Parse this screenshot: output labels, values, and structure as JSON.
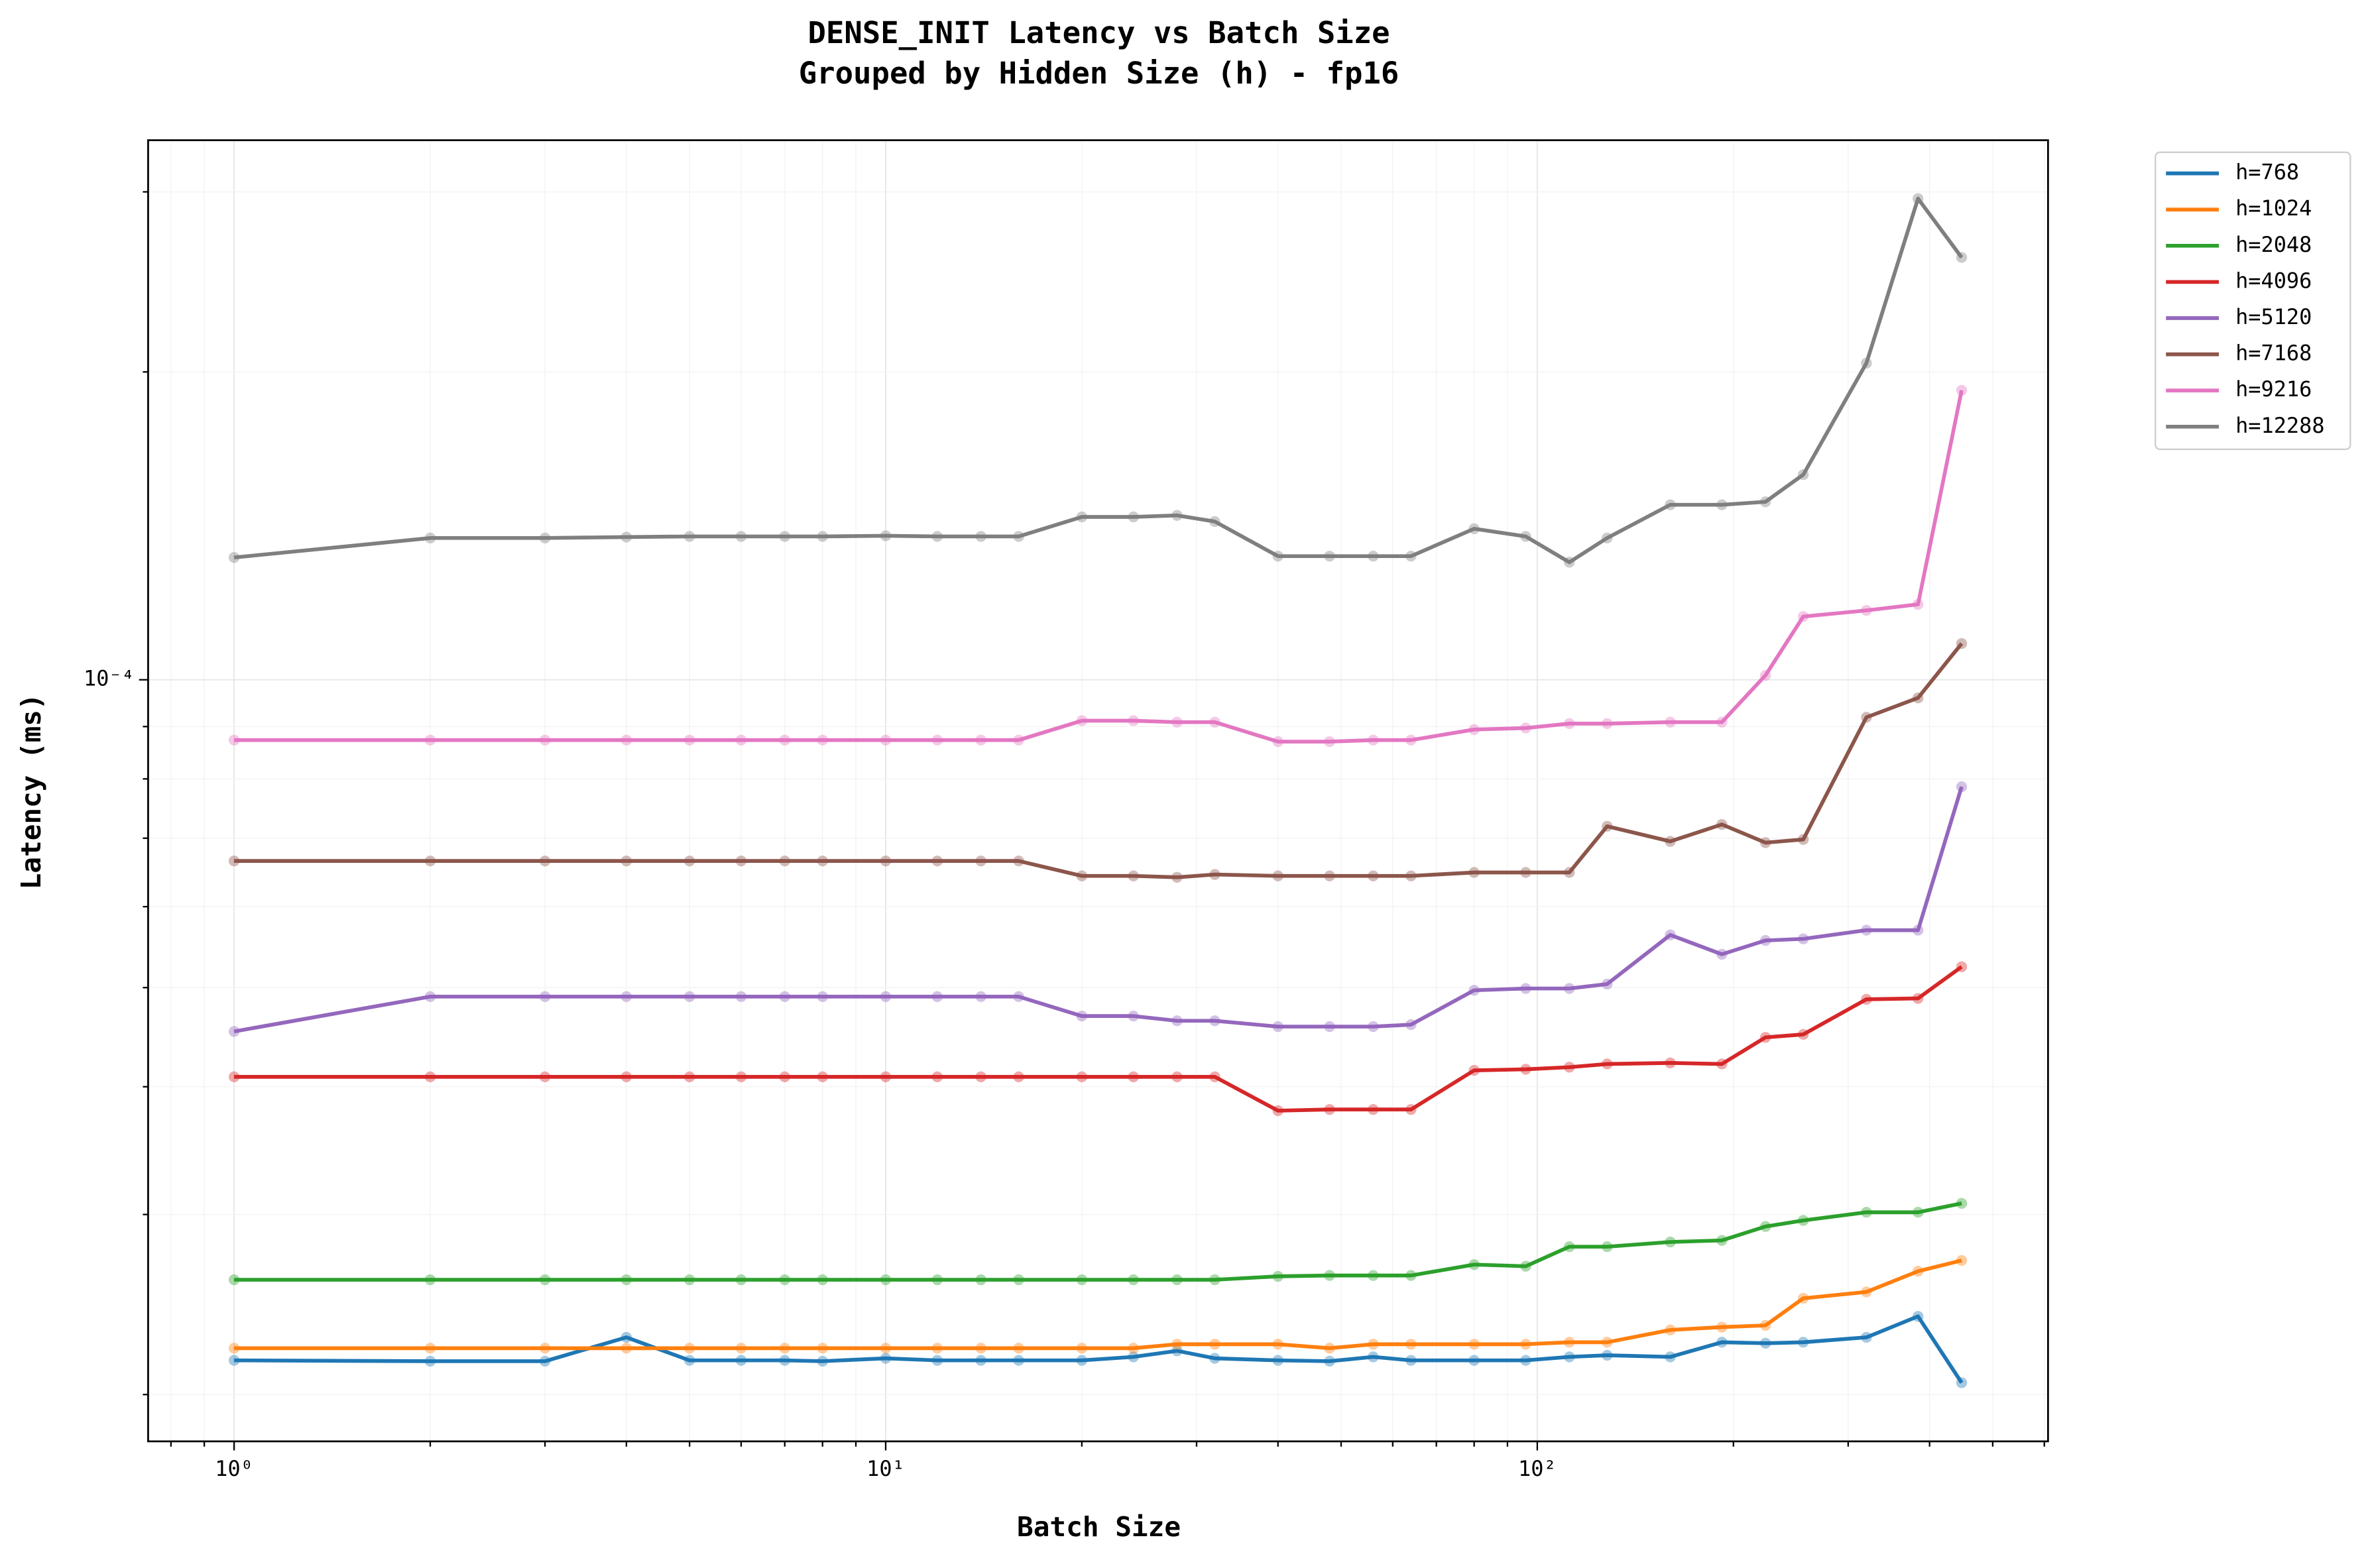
{
  "chart_data": {
    "type": "line",
    "title": "DENSE_INIT Latency vs Batch Size",
    "subtitle": "Grouped by Hidden Size (h) - fp16",
    "x_label": "Batch Size",
    "y_label": "Latency (ms)",
    "x_scale": "log",
    "y_scale": "log",
    "grid": true,
    "legend_position": "outside-upper-right",
    "xlim": [
      0.738,
      608
    ],
    "ylim": [
      1.8e-05,
      0.000337
    ],
    "xticks": [
      {
        "value": 1,
        "label": "10⁰"
      },
      {
        "value": 10,
        "label": "10¹"
      },
      {
        "value": 100,
        "label": "10²"
      }
    ],
    "xticks_minor": [
      0.8,
      0.9,
      2,
      3,
      4,
      5,
      6,
      7,
      8,
      9,
      20,
      30,
      40,
      50,
      60,
      70,
      80,
      90,
      200,
      300,
      400,
      500,
      600
    ],
    "yticks": [
      {
        "value": 0.0001,
        "label": "10⁻⁴"
      }
    ],
    "yticks_minor": [
      2e-05,
      3e-05,
      4e-05,
      5e-05,
      6e-05,
      7e-05,
      8e-05,
      9e-05,
      0.0002,
      0.0003
    ],
    "x": [
      1,
      2,
      3,
      4,
      5,
      6,
      7,
      8,
      10,
      12,
      14,
      16,
      20,
      24,
      28,
      32,
      40,
      48,
      56,
      64,
      80,
      96,
      112,
      128,
      160,
      192,
      224,
      256,
      320,
      384,
      448
    ],
    "series": [
      {
        "name": "h=768",
        "color": "#1f77b4",
        "values": [
          2.16e-05,
          2.156e-05,
          2.156e-05,
          2.275e-05,
          2.16e-05,
          2.16e-05,
          2.16e-05,
          2.156e-05,
          2.17e-05,
          2.16e-05,
          2.16e-05,
          2.16e-05,
          2.16e-05,
          2.177e-05,
          2.207e-05,
          2.17e-05,
          2.16e-05,
          2.156e-05,
          2.177e-05,
          2.16e-05,
          2.16e-05,
          2.16e-05,
          2.177e-05,
          2.185e-05,
          2.177e-05,
          2.25e-05,
          2.245e-05,
          2.25e-05,
          2.275e-05,
          2.385e-05,
          2.054e-05
        ]
      },
      {
        "name": "h=1024",
        "color": "#ff7f0e",
        "values": [
          2.22e-05,
          2.22e-05,
          2.22e-05,
          2.22e-05,
          2.22e-05,
          2.22e-05,
          2.22e-05,
          2.22e-05,
          2.22e-05,
          2.22e-05,
          2.22e-05,
          2.22e-05,
          2.22e-05,
          2.22e-05,
          2.24e-05,
          2.24e-05,
          2.24e-05,
          2.22e-05,
          2.24e-05,
          2.24e-05,
          2.24e-05,
          2.24e-05,
          2.25e-05,
          2.25e-05,
          2.313e-05,
          2.328e-05,
          2.337e-05,
          2.484e-05,
          2.52e-05,
          2.64e-05,
          2.705e-05
        ]
      },
      {
        "name": "h=2048",
        "color": "#2ca02c",
        "values": [
          2.59e-05,
          2.59e-05,
          2.59e-05,
          2.59e-05,
          2.59e-05,
          2.59e-05,
          2.59e-05,
          2.59e-05,
          2.59e-05,
          2.59e-05,
          2.59e-05,
          2.59e-05,
          2.59e-05,
          2.59e-05,
          2.59e-05,
          2.59e-05,
          2.61e-05,
          2.615e-05,
          2.615e-05,
          2.615e-05,
          2.68e-05,
          2.67e-05,
          2.79e-05,
          2.79e-05,
          2.82e-05,
          2.83e-05,
          2.92e-05,
          2.96e-05,
          3.015e-05,
          3.015e-05,
          3.076e-05
        ]
      },
      {
        "name": "h=4096",
        "color": "#d62728",
        "values": [
          4.09e-05,
          4.09e-05,
          4.09e-05,
          4.09e-05,
          4.09e-05,
          4.09e-05,
          4.09e-05,
          4.09e-05,
          4.09e-05,
          4.09e-05,
          4.09e-05,
          4.09e-05,
          4.09e-05,
          4.09e-05,
          4.09e-05,
          4.09e-05,
          3.79e-05,
          3.8e-05,
          3.8e-05,
          3.8e-05,
          4.15e-05,
          4.16e-05,
          4.18e-05,
          4.21e-05,
          4.22e-05,
          4.21e-05,
          4.47e-05,
          4.5e-05,
          4.87e-05,
          4.88e-05,
          5.24e-05
        ]
      },
      {
        "name": "h=5120",
        "color": "#9467bd",
        "values": [
          4.53e-05,
          4.9e-05,
          4.9e-05,
          4.9e-05,
          4.9e-05,
          4.9e-05,
          4.9e-05,
          4.9e-05,
          4.9e-05,
          4.9e-05,
          4.9e-05,
          4.9e-05,
          4.69e-05,
          4.69e-05,
          4.64e-05,
          4.64e-05,
          4.58e-05,
          4.58e-05,
          4.58e-05,
          4.6e-05,
          4.97e-05,
          4.99e-05,
          4.99e-05,
          5.04e-05,
          5.63e-05,
          5.39e-05,
          5.56e-05,
          5.58e-05,
          5.69e-05,
          5.69e-05,
          7.86e-05
        ]
      },
      {
        "name": "h=7168",
        "color": "#8c564b",
        "values": [
          6.65e-05,
          6.65e-05,
          6.65e-05,
          6.65e-05,
          6.65e-05,
          6.65e-05,
          6.65e-05,
          6.65e-05,
          6.65e-05,
          6.65e-05,
          6.65e-05,
          6.65e-05,
          6.43e-05,
          6.43e-05,
          6.41e-05,
          6.45e-05,
          6.43e-05,
          6.43e-05,
          6.43e-05,
          6.43e-05,
          6.48e-05,
          6.48e-05,
          6.48e-05,
          7.19e-05,
          6.95e-05,
          7.22e-05,
          6.93e-05,
          6.98e-05,
          9.19e-05,
          9.6e-05,
          0.0001085
        ]
      },
      {
        "name": "h=9216",
        "color": "#e377c2",
        "values": [
          8.73e-05,
          8.73e-05,
          8.73e-05,
          8.73e-05,
          8.73e-05,
          8.73e-05,
          8.73e-05,
          8.73e-05,
          8.73e-05,
          8.73e-05,
          8.73e-05,
          8.73e-05,
          9.12e-05,
          9.12e-05,
          9.09e-05,
          9.09e-05,
          8.7e-05,
          8.7e-05,
          8.73e-05,
          8.73e-05,
          8.94e-05,
          8.97e-05,
          9.06e-05,
          9.06e-05,
          9.09e-05,
          9.09e-05,
          0.000101,
          0.0001153,
          0.0001169,
          0.0001185,
          0.0001919
        ]
      },
      {
        "name": "h=12288",
        "color": "#7f7f7f",
        "values": [
          0.0001317,
          0.0001376,
          0.0001376,
          0.0001379,
          0.0001381,
          0.0001381,
          0.0001381,
          0.0001381,
          0.0001383,
          0.0001381,
          0.0001381,
          0.0001381,
          0.0001443,
          0.0001443,
          0.0001448,
          0.0001428,
          0.0001321,
          0.0001321,
          0.0001321,
          0.0001321,
          0.0001405,
          0.0001381,
          0.0001303,
          0.0001376,
          0.0001483,
          0.0001483,
          0.0001493,
          0.0001587,
          0.000204,
          0.0002955,
          0.0002588
        ]
      }
    ]
  }
}
